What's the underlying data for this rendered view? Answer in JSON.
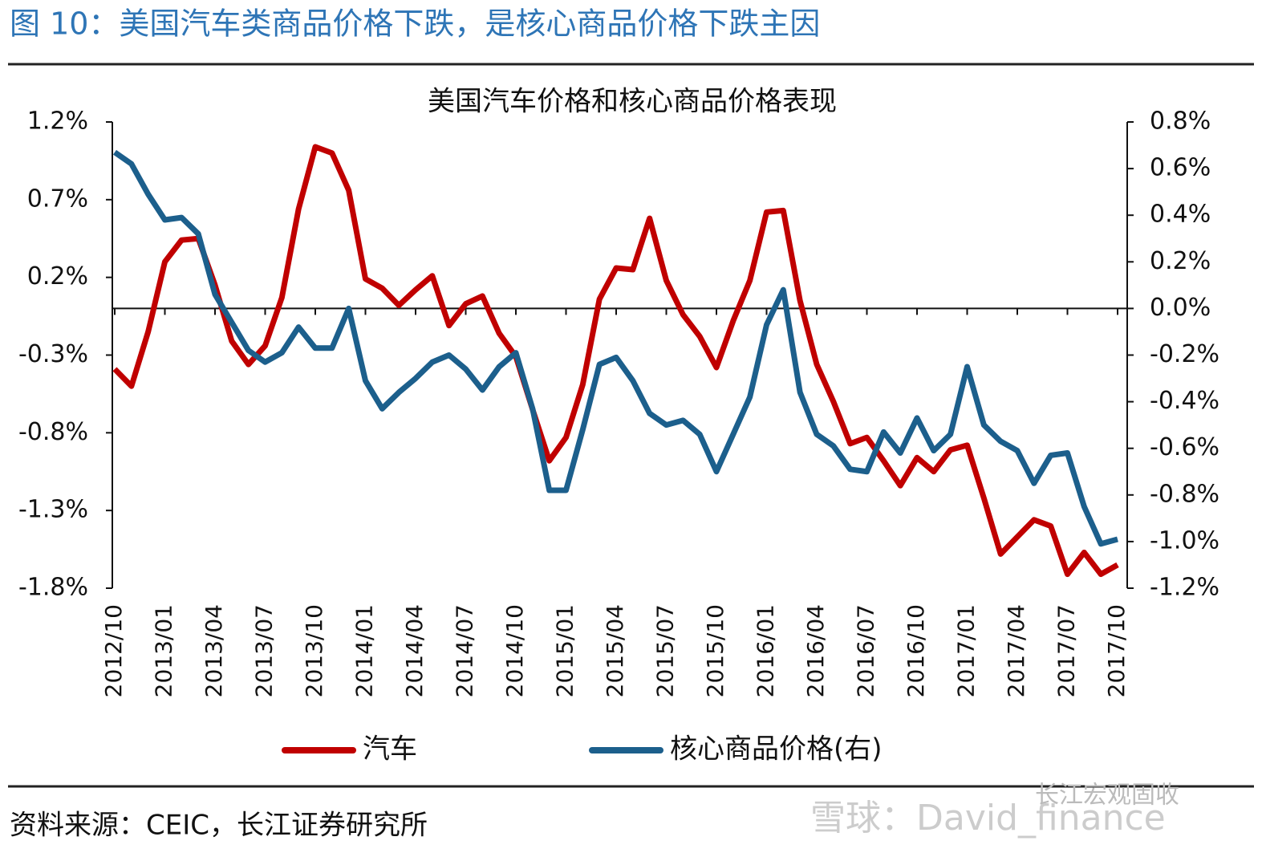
{
  "header": {
    "title": "图 10：美国汽车类商品价格下跌，是核心商品价格下跌主因"
  },
  "chart_data": {
    "type": "line",
    "title": "美国汽车价格和核心商品价格表现",
    "categories": [
      "2012/10",
      null,
      null,
      "2013/01",
      null,
      null,
      "2013/04",
      null,
      null,
      "2013/07",
      null,
      null,
      "2013/10",
      null,
      null,
      "2014/01",
      null,
      null,
      "2014/04",
      null,
      null,
      "2014/07",
      null,
      null,
      "2014/10",
      null,
      null,
      "2015/01",
      null,
      null,
      "2015/04",
      null,
      null,
      "2015/07",
      null,
      null,
      "2015/10",
      null,
      null,
      "2016/01",
      null,
      null,
      "2016/04",
      null,
      null,
      "2016/07",
      null,
      null,
      "2016/10",
      null,
      null,
      "2017/01",
      null,
      null,
      "2017/04",
      null,
      null,
      "2017/07",
      null,
      null,
      "2017/10"
    ],
    "series": [
      {
        "name": "汽车",
        "color": "#c00000",
        "values": [
          -0.39,
          -0.5,
          -0.15,
          0.3,
          0.44,
          0.45,
          0.15,
          -0.21,
          -0.36,
          -0.24,
          0.07,
          0.64,
          1.04,
          1.0,
          0.76,
          0.19,
          0.13,
          0.02,
          0.12,
          0.21,
          -0.11,
          0.03,
          0.08,
          -0.16,
          -0.31,
          -0.65,
          -0.98,
          -0.83,
          -0.49,
          0.06,
          0.26,
          0.25,
          0.58,
          0.18,
          -0.04,
          -0.18,
          -0.38,
          -0.08,
          0.18,
          0.62,
          0.63,
          0.05,
          -0.36,
          -0.6,
          -0.87,
          -0.83,
          -0.98,
          -1.14,
          -0.96,
          -1.05,
          -0.91,
          -0.88,
          -1.22,
          -1.58,
          -1.47,
          -1.36,
          -1.4,
          -1.71,
          -1.57,
          -1.71,
          -1.65
        ]
      },
      {
        "name": "核心商品价格(右)",
        "color": "#1c5f8c",
        "axis": "y2",
        "values": [
          0.67,
          0.62,
          0.49,
          0.38,
          0.39,
          0.32,
          0.06,
          -0.06,
          -0.18,
          -0.23,
          -0.19,
          -0.08,
          -0.17,
          -0.17,
          0.0,
          -0.31,
          -0.43,
          -0.36,
          -0.3,
          -0.23,
          -0.2,
          -0.26,
          -0.35,
          -0.25,
          -0.19,
          -0.43,
          -0.78,
          -0.78,
          -0.52,
          -0.24,
          -0.21,
          -0.31,
          -0.45,
          -0.5,
          -0.48,
          -0.54,
          -0.7,
          -0.54,
          -0.38,
          -0.07,
          0.08,
          -0.36,
          -0.54,
          -0.59,
          -0.69,
          -0.7,
          -0.53,
          -0.62,
          -0.47,
          -0.61,
          -0.54,
          -0.25,
          -0.5,
          -0.57,
          -0.61,
          -0.75,
          -0.63,
          -0.62,
          -0.85,
          -1.01,
          -0.99
        ]
      }
    ],
    "ylim": [
      -1.8,
      1.2
    ],
    "yticks": [
      {
        "value": -1.8,
        "label": "-1.8%"
      },
      {
        "value": -1.3,
        "label": "-1.3%"
      },
      {
        "value": -0.8,
        "label": "-0.8%"
      },
      {
        "value": -0.3,
        "label": "-0.3%"
      },
      {
        "value": 0.2,
        "label": "0.2%"
      },
      {
        "value": 0.7,
        "label": "0.7%"
      },
      {
        "value": 1.2,
        "label": "1.2%"
      }
    ],
    "y2lim": [
      -1.2,
      0.8
    ],
    "y2ticks": [
      {
        "value": -1.2,
        "label": "-1.2%"
      },
      {
        "value": -1.0,
        "label": "-1.0%"
      },
      {
        "value": -0.8,
        "label": "-0.8%"
      },
      {
        "value": -0.6,
        "label": "-0.6%"
      },
      {
        "value": -0.4,
        "label": "-0.4%"
      },
      {
        "value": -0.2,
        "label": "-0.2%"
      },
      {
        "value": 0.0,
        "label": "0.0%"
      },
      {
        "value": 0.2,
        "label": "0.2%"
      },
      {
        "value": 0.4,
        "label": "0.4%"
      },
      {
        "value": 0.6,
        "label": "0.6%"
      },
      {
        "value": 0.8,
        "label": "0.8%"
      }
    ],
    "legend": "bottom"
  },
  "footer": {
    "source": "资料来源：CEIC，长江证券研究所",
    "watermark": "长江宏观固收",
    "watermark2": "雪球：David_finance"
  }
}
